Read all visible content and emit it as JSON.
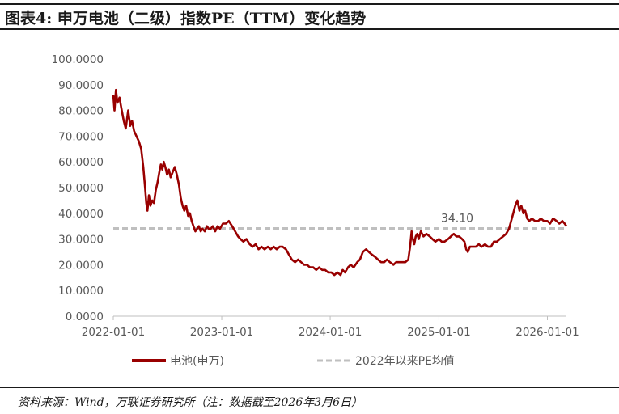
{
  "header": {
    "title": "图表4:  申万电池（二级）指数PE（TTM）变化趋势"
  },
  "footer": {
    "source": "资料来源：Wind，万联证券研究所（注：数据截至2026年3月6日）"
  },
  "chart_data": {
    "type": "line",
    "title": "图表4:  申万电池（二级）指数PE（TTM）变化趋势",
    "xlabel": "",
    "ylabel": "",
    "ylim": [
      0,
      100
    ],
    "yticks": [
      "0.0000",
      "10.0000",
      "20.0000",
      "30.0000",
      "40.0000",
      "50.0000",
      "60.0000",
      "70.0000",
      "80.0000",
      "90.0000",
      "100.0000"
    ],
    "xticks": [
      "2022-01-01",
      "2023-01-01",
      "2024-01-01",
      "2025-01-01",
      "2026-01-01"
    ],
    "grid": false,
    "legend_position": "bottom",
    "series": [
      {
        "name": "电池(申万)",
        "color": "#990000",
        "points": [
          [
            "2022-01-01",
            86
          ],
          [
            "2022-01-05",
            80
          ],
          [
            "2022-01-10",
            88
          ],
          [
            "2022-01-15",
            83
          ],
          [
            "2022-01-22",
            85
          ],
          [
            "2022-01-28",
            81
          ],
          [
            "2022-02-05",
            76
          ],
          [
            "2022-02-12",
            73
          ],
          [
            "2022-02-20",
            80
          ],
          [
            "2022-02-27",
            74
          ],
          [
            "2022-03-05",
            76
          ],
          [
            "2022-03-12",
            72
          ],
          [
            "2022-03-20",
            70
          ],
          [
            "2022-03-28",
            68
          ],
          [
            "2022-04-05",
            65
          ],
          [
            "2022-04-12",
            58
          ],
          [
            "2022-04-18",
            50
          ],
          [
            "2022-04-22",
            44
          ],
          [
            "2022-04-26",
            41
          ],
          [
            "2022-05-01",
            47
          ],
          [
            "2022-05-06",
            43
          ],
          [
            "2022-05-12",
            45
          ],
          [
            "2022-05-18",
            44
          ],
          [
            "2022-05-24",
            49
          ],
          [
            "2022-05-30",
            52
          ],
          [
            "2022-06-05",
            56
          ],
          [
            "2022-06-10",
            59
          ],
          [
            "2022-06-15",
            57
          ],
          [
            "2022-06-20",
            60
          ],
          [
            "2022-06-25",
            58
          ],
          [
            "2022-07-01",
            55
          ],
          [
            "2022-07-07",
            57
          ],
          [
            "2022-07-13",
            54
          ],
          [
            "2022-07-20",
            56
          ],
          [
            "2022-07-27",
            58
          ],
          [
            "2022-08-03",
            55
          ],
          [
            "2022-08-10",
            51
          ],
          [
            "2022-08-16",
            46
          ],
          [
            "2022-08-22",
            43
          ],
          [
            "2022-08-28",
            41
          ],
          [
            "2022-09-03",
            43
          ],
          [
            "2022-09-10",
            39
          ],
          [
            "2022-09-16",
            40
          ],
          [
            "2022-09-22",
            37
          ],
          [
            "2022-09-28",
            35
          ],
          [
            "2022-10-04",
            33
          ],
          [
            "2022-10-10",
            34
          ],
          [
            "2022-10-16",
            35
          ],
          [
            "2022-10-22",
            33
          ],
          [
            "2022-10-28",
            34
          ],
          [
            "2022-11-05",
            33
          ],
          [
            "2022-11-12",
            35
          ],
          [
            "2022-11-18",
            34
          ],
          [
            "2022-11-25",
            34
          ],
          [
            "2022-12-02",
            35
          ],
          [
            "2022-12-10",
            33
          ],
          [
            "2022-12-18",
            35
          ],
          [
            "2022-12-26",
            34
          ],
          [
            "2023-01-05",
            36
          ],
          [
            "2023-01-15",
            36
          ],
          [
            "2023-01-25",
            37
          ],
          [
            "2023-02-05",
            35
          ],
          [
            "2023-02-15",
            33
          ],
          [
            "2023-02-25",
            31
          ],
          [
            "2023-03-05",
            30
          ],
          [
            "2023-03-15",
            29
          ],
          [
            "2023-03-25",
            30
          ],
          [
            "2023-04-05",
            28
          ],
          [
            "2023-04-15",
            27
          ],
          [
            "2023-04-25",
            28
          ],
          [
            "2023-05-05",
            26
          ],
          [
            "2023-05-15",
            27
          ],
          [
            "2023-05-25",
            26
          ],
          [
            "2023-06-05",
            27
          ],
          [
            "2023-06-15",
            26
          ],
          [
            "2023-06-25",
            27
          ],
          [
            "2023-07-05",
            26
          ],
          [
            "2023-07-15",
            27
          ],
          [
            "2023-07-25",
            27
          ],
          [
            "2023-08-05",
            26
          ],
          [
            "2023-08-15",
            24
          ],
          [
            "2023-08-25",
            22
          ],
          [
            "2023-09-05",
            21
          ],
          [
            "2023-09-15",
            22
          ],
          [
            "2023-09-25",
            21
          ],
          [
            "2023-10-05",
            20
          ],
          [
            "2023-10-15",
            20
          ],
          [
            "2023-10-25",
            19
          ],
          [
            "2023-11-05",
            19
          ],
          [
            "2023-11-15",
            18
          ],
          [
            "2023-11-25",
            19
          ],
          [
            "2023-12-05",
            18
          ],
          [
            "2023-12-15",
            18
          ],
          [
            "2023-12-25",
            17
          ],
          [
            "2024-01-05",
            17
          ],
          [
            "2024-01-15",
            16
          ],
          [
            "2024-01-25",
            17
          ],
          [
            "2024-02-05",
            16
          ],
          [
            "2024-02-12",
            18
          ],
          [
            "2024-02-20",
            17
          ],
          [
            "2024-03-01",
            19
          ],
          [
            "2024-03-10",
            20
          ],
          [
            "2024-03-20",
            19
          ],
          [
            "2024-04-01",
            21
          ],
          [
            "2024-04-10",
            22
          ],
          [
            "2024-04-20",
            25
          ],
          [
            "2024-05-01",
            26
          ],
          [
            "2024-05-10",
            25
          ],
          [
            "2024-05-20",
            24
          ],
          [
            "2024-06-01",
            23
          ],
          [
            "2024-06-10",
            22
          ],
          [
            "2024-06-20",
            21
          ],
          [
            "2024-07-01",
            21
          ],
          [
            "2024-07-10",
            22
          ],
          [
            "2024-07-20",
            21
          ],
          [
            "2024-08-01",
            20
          ],
          [
            "2024-08-10",
            21
          ],
          [
            "2024-08-20",
            21
          ],
          [
            "2024-09-01",
            21
          ],
          [
            "2024-09-10",
            21
          ],
          [
            "2024-09-20",
            22
          ],
          [
            "2024-09-26",
            27
          ],
          [
            "2024-10-01",
            33
          ],
          [
            "2024-10-05",
            30
          ],
          [
            "2024-10-10",
            28
          ],
          [
            "2024-10-15",
            31
          ],
          [
            "2024-10-20",
            32
          ],
          [
            "2024-10-25",
            30
          ],
          [
            "2024-11-01",
            33
          ],
          [
            "2024-11-10",
            31
          ],
          [
            "2024-11-20",
            32
          ],
          [
            "2024-12-01",
            31
          ],
          [
            "2024-12-10",
            30
          ],
          [
            "2024-12-20",
            29
          ],
          [
            "2025-01-01",
            30
          ],
          [
            "2025-01-10",
            29
          ],
          [
            "2025-01-20",
            29
          ],
          [
            "2025-02-01",
            30
          ],
          [
            "2025-02-10",
            31
          ],
          [
            "2025-02-20",
            32
          ],
          [
            "2025-03-01",
            31
          ],
          [
            "2025-03-10",
            31
          ],
          [
            "2025-03-20",
            30
          ],
          [
            "2025-03-28",
            29
          ],
          [
            "2025-04-03",
            26
          ],
          [
            "2025-04-08",
            25
          ],
          [
            "2025-04-15",
            27
          ],
          [
            "2025-04-25",
            27
          ],
          [
            "2025-05-05",
            27
          ],
          [
            "2025-05-15",
            28
          ],
          [
            "2025-05-25",
            27
          ],
          [
            "2025-06-05",
            28
          ],
          [
            "2025-06-15",
            27
          ],
          [
            "2025-06-25",
            27
          ],
          [
            "2025-07-05",
            29
          ],
          [
            "2025-07-15",
            29
          ],
          [
            "2025-07-25",
            30
          ],
          [
            "2025-08-05",
            31
          ],
          [
            "2025-08-15",
            32
          ],
          [
            "2025-08-25",
            34
          ],
          [
            "2025-09-01",
            37
          ],
          [
            "2025-09-08",
            40
          ],
          [
            "2025-09-15",
            43
          ],
          [
            "2025-09-22",
            45
          ],
          [
            "2025-09-29",
            41
          ],
          [
            "2025-10-05",
            43
          ],
          [
            "2025-10-12",
            40
          ],
          [
            "2025-10-18",
            41
          ],
          [
            "2025-10-25",
            38
          ],
          [
            "2025-11-01",
            37
          ],
          [
            "2025-11-10",
            38
          ],
          [
            "2025-11-20",
            37
          ],
          [
            "2025-12-01",
            37
          ],
          [
            "2025-12-10",
            38
          ],
          [
            "2025-12-20",
            37
          ],
          [
            "2026-01-01",
            37
          ],
          [
            "2026-01-10",
            36
          ],
          [
            "2026-01-20",
            38
          ],
          [
            "2026-02-01",
            37
          ],
          [
            "2026-02-10",
            36
          ],
          [
            "2026-02-20",
            37
          ],
          [
            "2026-02-28",
            36
          ],
          [
            "2026-03-06",
            35
          ]
        ]
      },
      {
        "name": "2022年以来PE均值",
        "color": "#bfbfbf",
        "dashed": true,
        "value": 34.1,
        "label": "34.10"
      }
    ]
  }
}
